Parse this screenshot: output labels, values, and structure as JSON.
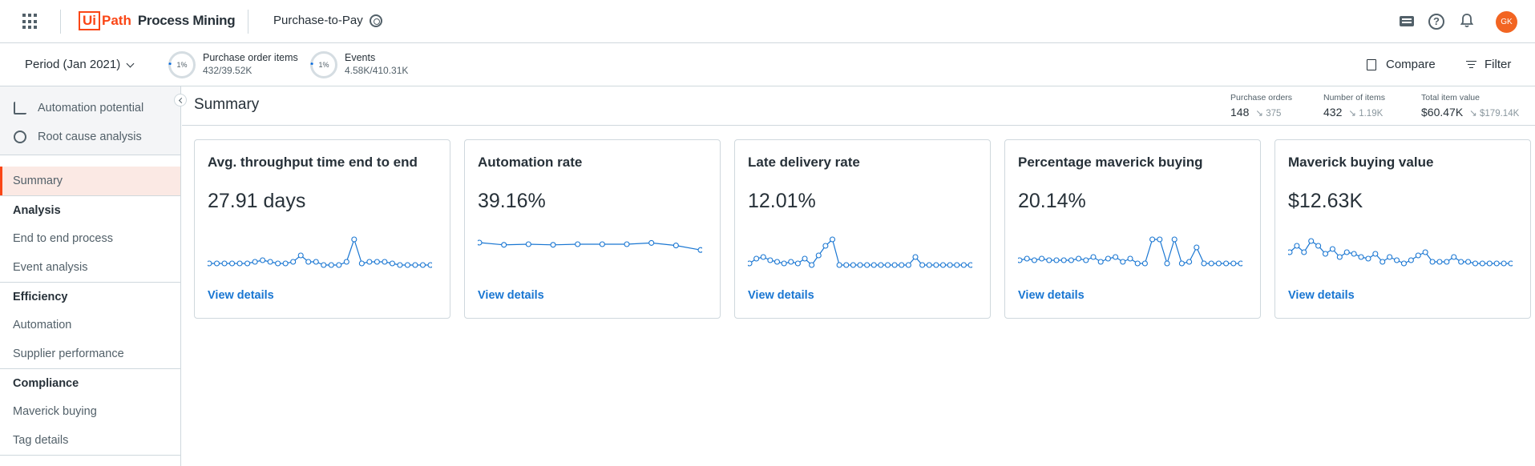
{
  "header": {
    "logo_brand": "Ui",
    "logo_path": "Path",
    "logo_product": "Process Mining",
    "app_name": "Purchase-to-Pay",
    "avatar_initials": "GK",
    "brand_color": "#fa4616"
  },
  "filterbar": {
    "period_label": "Period (Jan 2021)",
    "metrics": [
      {
        "percent": "1%",
        "label": "Purchase order items",
        "value": "432/39.52K"
      },
      {
        "percent": "1%",
        "label": "Events",
        "value": "4.58K/410.31K"
      }
    ],
    "compare_label": "Compare",
    "filter_label": "Filter"
  },
  "sidebar": {
    "tools": [
      {
        "label": "Automation potential",
        "icon": "robot-arm-icon"
      },
      {
        "label": "Root cause analysis",
        "icon": "target-icon"
      }
    ],
    "active_item": "Summary",
    "groups": [
      {
        "title": "Analysis",
        "items": [
          "End to end process",
          "Event analysis"
        ]
      },
      {
        "title": "Efficiency",
        "items": [
          "Automation",
          "Supplier performance"
        ]
      },
      {
        "title": "Compliance",
        "items": [
          "Maverick buying",
          "Tag details"
        ]
      }
    ]
  },
  "summary": {
    "title": "Summary",
    "kpis": [
      {
        "label": "Purchase orders",
        "value": "148",
        "trend": "375"
      },
      {
        "label": "Number of items",
        "value": "432",
        "trend": "1.19K"
      },
      {
        "label": "Total item value",
        "value": "$60.47K",
        "trend": "$179.14K"
      }
    ],
    "cards": [
      {
        "title": "Avg. throughput time end to end",
        "value": "27.91 days",
        "link": "View details",
        "trend": [
          0.2,
          0.2,
          0.2,
          0.2,
          0.2,
          0.2,
          0.25,
          0.3,
          0.25,
          0.2,
          0.2,
          0.25,
          0.45,
          0.25,
          0.25,
          0.15,
          0.15,
          0.15,
          0.25,
          0.95,
          0.2,
          0.25,
          0.25,
          0.25,
          0.2,
          0.15,
          0.15,
          0.15,
          0.15,
          0.15
        ]
      },
      {
        "title": "Automation rate",
        "value": "39.16%",
        "link": "View details",
        "trend": [
          0.85,
          0.78,
          0.8,
          0.78,
          0.8,
          0.8,
          0.8,
          0.84,
          0.76,
          0.62
        ]
      },
      {
        "title": "Late delivery rate",
        "value": "12.01%",
        "link": "View details",
        "trend": [
          0.2,
          0.35,
          0.4,
          0.3,
          0.25,
          0.2,
          0.25,
          0.2,
          0.35,
          0.15,
          0.45,
          0.75,
          0.95,
          0.15,
          0.15,
          0.15,
          0.15,
          0.15,
          0.15,
          0.15,
          0.15,
          0.15,
          0.15,
          0.15,
          0.4,
          0.15,
          0.15,
          0.15,
          0.15,
          0.15,
          0.15,
          0.15,
          0.15
        ]
      },
      {
        "title": "Percentage maverick buying",
        "value": "20.14%",
        "link": "View details",
        "trend": [
          0.3,
          0.35,
          0.3,
          0.35,
          0.3,
          0.3,
          0.3,
          0.3,
          0.35,
          0.3,
          0.4,
          0.25,
          0.35,
          0.4,
          0.25,
          0.35,
          0.2,
          0.2,
          0.95,
          0.95,
          0.2,
          0.95,
          0.2,
          0.25,
          0.7,
          0.2,
          0.2,
          0.2,
          0.2,
          0.2,
          0.2
        ]
      },
      {
        "title": "Maverick buying value",
        "value": "$12.63K",
        "link": "View details",
        "trend": [
          0.55,
          0.75,
          0.55,
          0.9,
          0.75,
          0.5,
          0.65,
          0.4,
          0.55,
          0.5,
          0.4,
          0.35,
          0.5,
          0.25,
          0.4,
          0.3,
          0.2,
          0.3,
          0.45,
          0.55,
          0.25,
          0.25,
          0.25,
          0.4,
          0.25,
          0.25,
          0.2,
          0.2,
          0.2,
          0.2,
          0.2,
          0.2
        ]
      }
    ]
  },
  "colors": {
    "accent": "#fa4616",
    "link": "#1976d2",
    "sparkline": "#1976d2"
  }
}
